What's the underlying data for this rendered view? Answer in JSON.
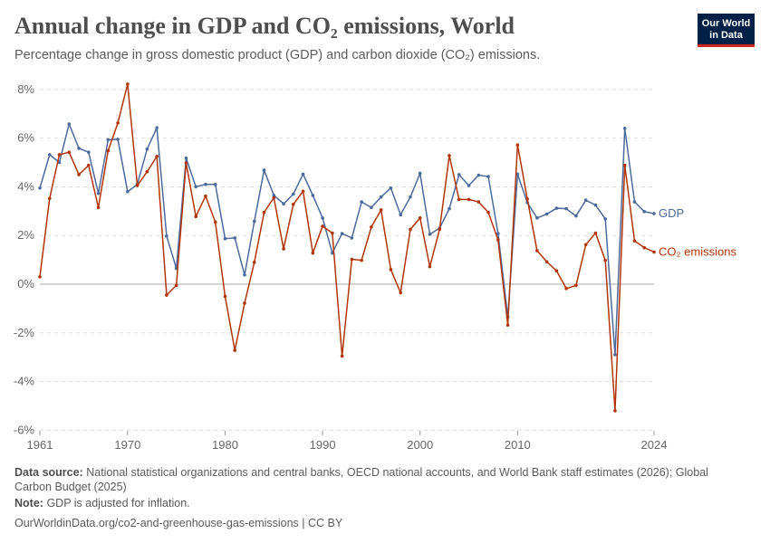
{
  "header": {
    "title": "Annual change in GDP and CO₂ emissions, World",
    "subtitle": "Percentage change in gross domestic product (GDP) and carbon dioxide (CO₂) emissions.",
    "logo_line1": "Our World",
    "logo_line2": "in Data"
  },
  "footer": {
    "source_label": "Data source:",
    "source_text": "National statistical organizations and central banks, OECD national accounts, and World Bank staff estimates (2026); Global Carbon Budget (2025)",
    "note_label": "Note:",
    "note_text": "GDP is adjusted for inflation.",
    "url": "OurWorldinData.org/co2-and-greenhouse-gas-emissions | CC BY"
  },
  "chart_data": {
    "type": "line",
    "title": "Annual change in GDP and CO₂ emissions, World",
    "xlim": [
      1961,
      2024
    ],
    "ylim": [
      -6,
      8
    ],
    "x_ticks": [
      "1961",
      "1970",
      "1980",
      "1990",
      "2000",
      "2010",
      "2024"
    ],
    "y_ticks": [
      "-6%",
      "-4%",
      "-2%",
      "0%",
      "2%",
      "4%",
      "6%",
      "8%"
    ],
    "grid": "horizontal dashed",
    "legend": "inline labels at right end",
    "x_start": 1961,
    "series": [
      {
        "name": "GDP",
        "color": "#4c6a9c",
        "values": [
          3.95,
          5.32,
          5.0,
          6.58,
          5.58,
          5.42,
          3.73,
          5.93,
          5.95,
          3.8,
          4.1,
          5.55,
          6.42,
          1.98,
          0.65,
          5.18,
          4.0,
          4.1,
          4.1,
          1.87,
          1.9,
          0.38,
          2.58,
          4.68,
          3.65,
          3.3,
          3.7,
          4.52,
          3.65,
          2.72,
          1.28,
          2.08,
          1.9,
          3.38,
          3.15,
          3.58,
          3.95,
          2.85,
          3.58,
          4.55,
          2.05,
          2.3,
          3.1,
          4.5,
          4.05,
          4.48,
          4.42,
          2.08,
          -1.35,
          4.52,
          3.35,
          2.72,
          2.88,
          3.12,
          3.1,
          2.8,
          3.45,
          3.25,
          2.68,
          -2.9,
          6.4,
          3.38,
          2.98,
          2.9
        ]
      },
      {
        "name": "CO₂ emissions",
        "color": "#b13507",
        "values": [
          0.3,
          3.52,
          5.32,
          5.42,
          4.5,
          4.88,
          3.15,
          5.48,
          6.62,
          8.22,
          4.05,
          4.62,
          5.25,
          -0.45,
          -0.05,
          4.98,
          2.78,
          3.62,
          2.55,
          -0.5,
          -2.72,
          -0.78,
          0.9,
          2.95,
          3.55,
          1.45,
          3.28,
          3.82,
          1.28,
          2.38,
          2.1,
          -2.95,
          1.02,
          0.98,
          2.35,
          3.05,
          0.6,
          -0.35,
          2.25,
          2.72,
          0.72,
          2.25,
          5.28,
          3.48,
          3.48,
          3.38,
          2.95,
          1.82,
          -1.68,
          5.72,
          3.5,
          1.38,
          0.92,
          0.55,
          -0.18,
          -0.05,
          1.62,
          2.1,
          0.98,
          -5.2,
          4.88,
          1.78,
          1.5,
          1.32
        ]
      }
    ]
  }
}
